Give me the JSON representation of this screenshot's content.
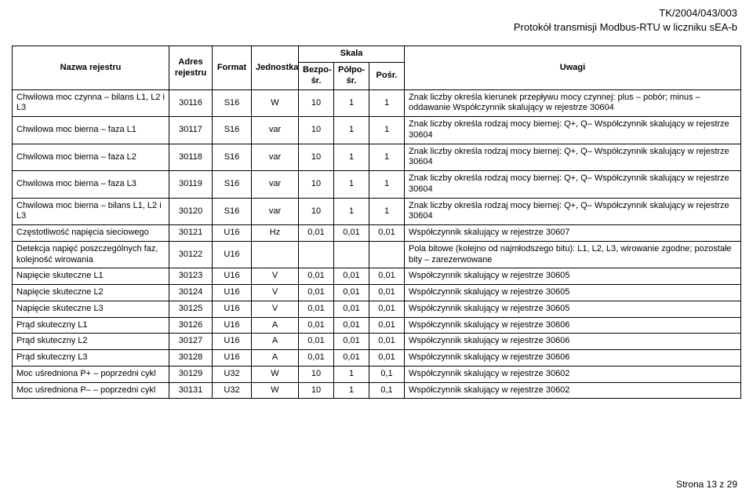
{
  "header": {
    "doc_id": "TK/2004/043/003",
    "doc_title": "Protokół transmisji Modbus-RTU w liczniku sEA-b"
  },
  "columns": {
    "name": "Nazwa rejestru",
    "addr": "Adres rejestru",
    "format": "Format",
    "unit": "Jednostka",
    "scale_group": "Skala",
    "scale_bezposr": "Bezpo-śr.",
    "scale_polposr": "Półpo-śr.",
    "scale_posr": "Pośr.",
    "notes": "Uwagi"
  },
  "rows": [
    {
      "name": "Chwilowa moc czynna – bilans L1, L2 i L3",
      "addr": "30116",
      "format": "S16",
      "unit": "W",
      "s1": "10",
      "s2": "1",
      "s3": "1",
      "notes": "Znak liczby określa kierunek przepływu mocy czynnej: plus – pobór; minus – oddawanie Współczynnik skalujący w rejestrze 30604"
    },
    {
      "name": "Chwilowa moc bierna – faza L1",
      "addr": "30117",
      "format": "S16",
      "unit": "var",
      "s1": "10",
      "s2": "1",
      "s3": "1",
      "notes": "Znak liczby określa rodzaj mocy biernej: Q+, Q– Współczynnik skalujący w rejestrze 30604"
    },
    {
      "name": "Chwilowa moc bierna – faza L2",
      "addr": "30118",
      "format": "S16",
      "unit": "var",
      "s1": "10",
      "s2": "1",
      "s3": "1",
      "notes": "Znak liczby określa rodzaj mocy biernej: Q+, Q– Współczynnik skalujący w rejestrze 30604"
    },
    {
      "name": "Chwilowa moc bierna – faza L3",
      "addr": "30119",
      "format": "S16",
      "unit": "var",
      "s1": "10",
      "s2": "1",
      "s3": "1",
      "notes": "Znak liczby określa rodzaj mocy biernej: Q+, Q– Współczynnik skalujący w rejestrze 30604"
    },
    {
      "name": "Chwilowa moc bierna – bilans L1, L2 i L3",
      "addr": "30120",
      "format": "S16",
      "unit": "var",
      "s1": "10",
      "s2": "1",
      "s3": "1",
      "notes": "Znak liczby określa rodzaj mocy biernej: Q+, Q– Współczynnik skalujący w rejestrze 30604"
    },
    {
      "name": "Częstotliwość napięcia sieciowego",
      "addr": "30121",
      "format": "U16",
      "unit": "Hz",
      "s1": "0,01",
      "s2": "0,01",
      "s3": "0,01",
      "notes": "Współczynnik skalujący w rejestrze 30607"
    },
    {
      "name": "Detekcja napięć poszczególnych faz, kolejność wirowania",
      "addr": "30122",
      "format": "U16",
      "unit": "",
      "s1": "",
      "s2": "",
      "s3": "",
      "notes": "Pola bitowe (kolejno od najmłodszego bitu): L1, L2, L3, wirowanie zgodne; pozostałe bity – zarezerwowane"
    },
    {
      "name": "Napięcie skuteczne L1",
      "addr": "30123",
      "format": "U16",
      "unit": "V",
      "s1": "0,01",
      "s2": "0,01",
      "s3": "0,01",
      "notes": "Współczynnik skalujący w rejestrze 30605"
    },
    {
      "name": "Napięcie skuteczne L2",
      "addr": "30124",
      "format": "U16",
      "unit": "V",
      "s1": "0,01",
      "s2": "0,01",
      "s3": "0,01",
      "notes": "Współczynnik skalujący w rejestrze 30605"
    },
    {
      "name": "Napięcie skuteczne L3",
      "addr": "30125",
      "format": "U16",
      "unit": "V",
      "s1": "0,01",
      "s2": "0,01",
      "s3": "0,01",
      "notes": "Współczynnik skalujący w rejestrze 30605"
    },
    {
      "name": "Prąd skuteczny L1",
      "addr": "30126",
      "format": "U16",
      "unit": "A",
      "s1": "0,01",
      "s2": "0,01",
      "s3": "0,01",
      "notes": "Współczynnik skalujący w rejestrze 30606"
    },
    {
      "name": "Prąd skuteczny L2",
      "addr": "30127",
      "format": "U16",
      "unit": "A",
      "s1": "0,01",
      "s2": "0,01",
      "s3": "0,01",
      "notes": "Współczynnik skalujący w rejestrze 30606"
    },
    {
      "name": "Prąd skuteczny L3",
      "addr": "30128",
      "format": "U16",
      "unit": "A",
      "s1": "0,01",
      "s2": "0,01",
      "s3": "0,01",
      "notes": "Współczynnik skalujący w rejestrze 30606"
    },
    {
      "name": "Moc uśredniona P+ – poprzedni cykl",
      "addr": "30129",
      "format": "U32",
      "unit": "W",
      "s1": "10",
      "s2": "1",
      "s3": "0,1",
      "notes": "Współczynnik skalujący w rejestrze 30602"
    },
    {
      "name": "Moc uśredniona P– – poprzedni cykl",
      "addr": "30131",
      "format": "U32",
      "unit": "W",
      "s1": "10",
      "s2": "1",
      "s3": "0,1",
      "notes": "Współczynnik skalujący w rejestrze 30602"
    }
  ],
  "footer": {
    "page": "Strona 13 z 29"
  }
}
